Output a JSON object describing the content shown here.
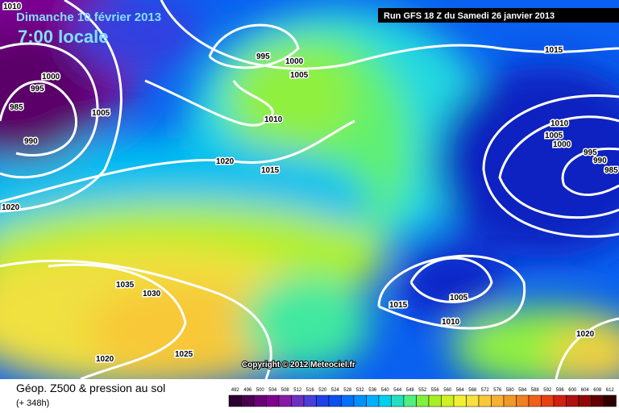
{
  "header": {
    "date": "Dimanche 10 février 2013",
    "time": "7:00 locale",
    "run": "Run GFS 18 Z du Samedi 26 janvier 2013"
  },
  "isobar_labels": [
    1010,
    1000,
    995,
    985,
    990,
    1005,
    995,
    1000,
    1005,
    1015,
    1010,
    1020,
    1015,
    1020,
    1010,
    1005,
    1000,
    995,
    990,
    985,
    1035,
    1030,
    1005,
    1015,
    1010,
    1020,
    1020,
    1025
  ],
  "copyright": "Copyright © 2012 Meteociel.fr",
  "footer": {
    "title": "Géop. Z500 & pression au sol",
    "lead": "(+ 348h)"
  },
  "scale": {
    "values": [
      492,
      496,
      500,
      504,
      508,
      512,
      516,
      520,
      524,
      528,
      532,
      536,
      540,
      544,
      548,
      552,
      556,
      560,
      564,
      568,
      572,
      576,
      580,
      584,
      588,
      592,
      596,
      600,
      604,
      608,
      612
    ],
    "colors": [
      "#2a0030",
      "#4b0050",
      "#6a0078",
      "#80008f",
      "#8a1aa8",
      "#6f2fc0",
      "#4a3ed8",
      "#2040e8",
      "#0a50f0",
      "#0070ff",
      "#0090ff",
      "#00b0ff",
      "#00d0f0",
      "#20e0c0",
      "#50f080",
      "#80f040",
      "#a8f020",
      "#d0f020",
      "#f0f030",
      "#f8e040",
      "#f8c838",
      "#f8b030",
      "#f09828",
      "#f08020",
      "#f06018",
      "#e84010",
      "#d02010",
      "#b01010",
      "#900808",
      "#600000",
      "#300000"
    ]
  }
}
